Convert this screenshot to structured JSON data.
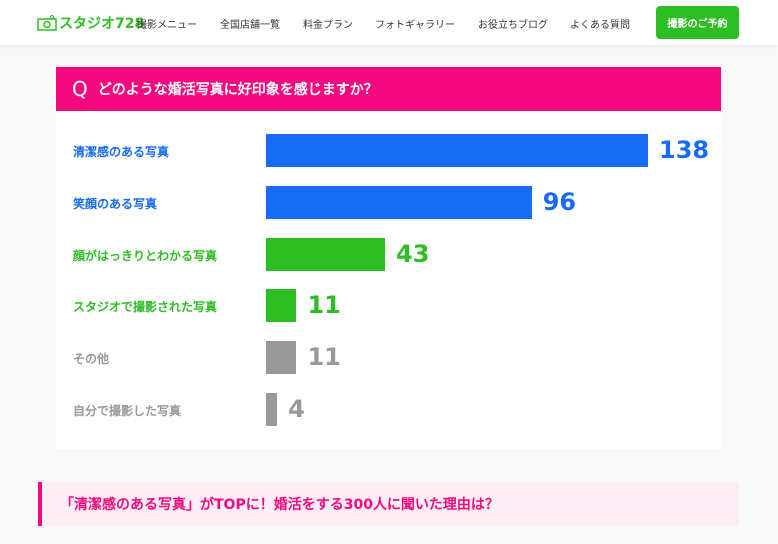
{
  "header": {
    "logo": "スタジオ728",
    "nav": [
      "撮影メニュー",
      "全国店舗一覧",
      "料金プラン",
      "フォトギャラリー",
      "お役立ちブログ",
      "よくある質問"
    ],
    "cta": "撮影のご予約"
  },
  "question": {
    "prefix": "Q",
    "text": "どのような婚活写真に好印象を感じますか？"
  },
  "chart_data": {
    "type": "bar",
    "orientation": "horizontal",
    "categories": [
      "清潔感のある写真",
      "笑顔のある写真",
      "顔がはっきりとわかる写真",
      "スタジオで撮影された写真",
      "その他",
      "自分で撮影した写真"
    ],
    "values": [
      138,
      96,
      43,
      11,
      11,
      4
    ],
    "colors": [
      "#166cf7",
      "#166cf7",
      "#2dbe24",
      "#2dbe24",
      "#999999",
      "#999999"
    ]
  },
  "subheading": "「清潔感のある写真」がTOPに！婚活をする300人に聞いた理由は？"
}
